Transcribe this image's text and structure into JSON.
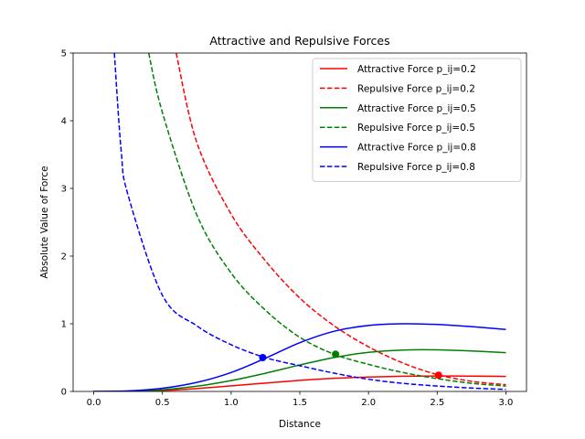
{
  "chart_data": {
    "type": "line",
    "title": "Attractive and Repulsive Forces",
    "xlabel": "Distance",
    "ylabel": "Absolute Value of Force",
    "xlim": [
      -0.15,
      3.15
    ],
    "ylim": [
      0,
      5
    ],
    "xticks": [
      "0.0",
      "0.5",
      "1.0",
      "1.5",
      "2.0",
      "2.5",
      "3.0"
    ],
    "yticks": [
      "0",
      "1",
      "2",
      "3",
      "4",
      "5"
    ],
    "grid": false,
    "legend_position": "top-right",
    "series": [
      {
        "name": "Attractive Force p_ij=0.2",
        "color": "#ff0000",
        "style": "solid",
        "x": [
          0,
          0.25,
          0.5,
          0.75,
          1.0,
          1.25,
          1.5,
          1.75,
          2.0,
          2.25,
          2.5,
          2.75,
          3.0
        ],
        "y": [
          0,
          0.002,
          0.014,
          0.043,
          0.082,
          0.124,
          0.164,
          0.194,
          0.213,
          0.224,
          0.228,
          0.226,
          0.221
        ]
      },
      {
        "name": "Repulsive Force p_ij=0.2",
        "color": "#ff0000",
        "style": "dashed",
        "x": [
          0.6,
          0.75,
          1.0,
          1.25,
          1.5,
          1.75,
          2.0,
          2.25,
          2.5,
          2.75,
          3.0
        ],
        "y": [
          5.0,
          3.68,
          2.62,
          1.93,
          1.38,
          0.97,
          0.66,
          0.42,
          0.25,
          0.15,
          0.1
        ]
      },
      {
        "name": "Attractive Force p_ij=0.5",
        "color": "#008000",
        "style": "solid",
        "x": [
          0,
          0.25,
          0.5,
          0.75,
          1.0,
          1.25,
          1.5,
          1.75,
          2.0,
          2.25,
          2.5,
          2.75,
          3.0
        ],
        "y": [
          0,
          0.004,
          0.026,
          0.077,
          0.161,
          0.269,
          0.391,
          0.502,
          0.577,
          0.612,
          0.615,
          0.598,
          0.572
        ]
      },
      {
        "name": "Repulsive Force p_ij=0.5",
        "color": "#008000",
        "style": "dashed",
        "x": [
          0.4,
          0.5,
          0.75,
          1.0,
          1.25,
          1.5,
          1.75,
          2.0,
          2.25,
          2.5,
          2.75,
          3.0
        ],
        "y": [
          5.0,
          4.12,
          2.61,
          1.75,
          1.2,
          0.8,
          0.55,
          0.4,
          0.28,
          0.19,
          0.12,
          0.08
        ]
      },
      {
        "name": "Attractive Force p_ij=0.8",
        "color": "#0000ff",
        "style": "solid",
        "x": [
          0,
          0.25,
          0.5,
          0.75,
          1.0,
          1.25,
          1.5,
          1.75,
          2.0,
          2.25,
          2.5,
          2.75,
          3.0
        ],
        "y": [
          0,
          0.008,
          0.047,
          0.133,
          0.28,
          0.491,
          0.72,
          0.889,
          0.975,
          1.0,
          0.99,
          0.957,
          0.915
        ]
      },
      {
        "name": "Repulsive Force p_ij=0.8",
        "color": "#0000ff",
        "style": "dashed",
        "x": [
          0.15,
          0.2,
          0.25,
          0.5,
          0.75,
          1.0,
          1.25,
          1.5,
          1.75,
          2.0,
          2.25,
          2.5,
          2.75,
          3.0
        ],
        "y": [
          5.0,
          3.55,
          2.9,
          1.42,
          0.97,
          0.69,
          0.5,
          0.38,
          0.27,
          0.18,
          0.12,
          0.08,
          0.05,
          0.03
        ]
      }
    ],
    "intersection_points": [
      {
        "x": 2.51,
        "y": 0.24,
        "color": "#ff0000"
      },
      {
        "x": 1.76,
        "y": 0.55,
        "color": "#008000"
      },
      {
        "x": 1.23,
        "y": 0.5,
        "color": "#0000ff"
      }
    ]
  }
}
